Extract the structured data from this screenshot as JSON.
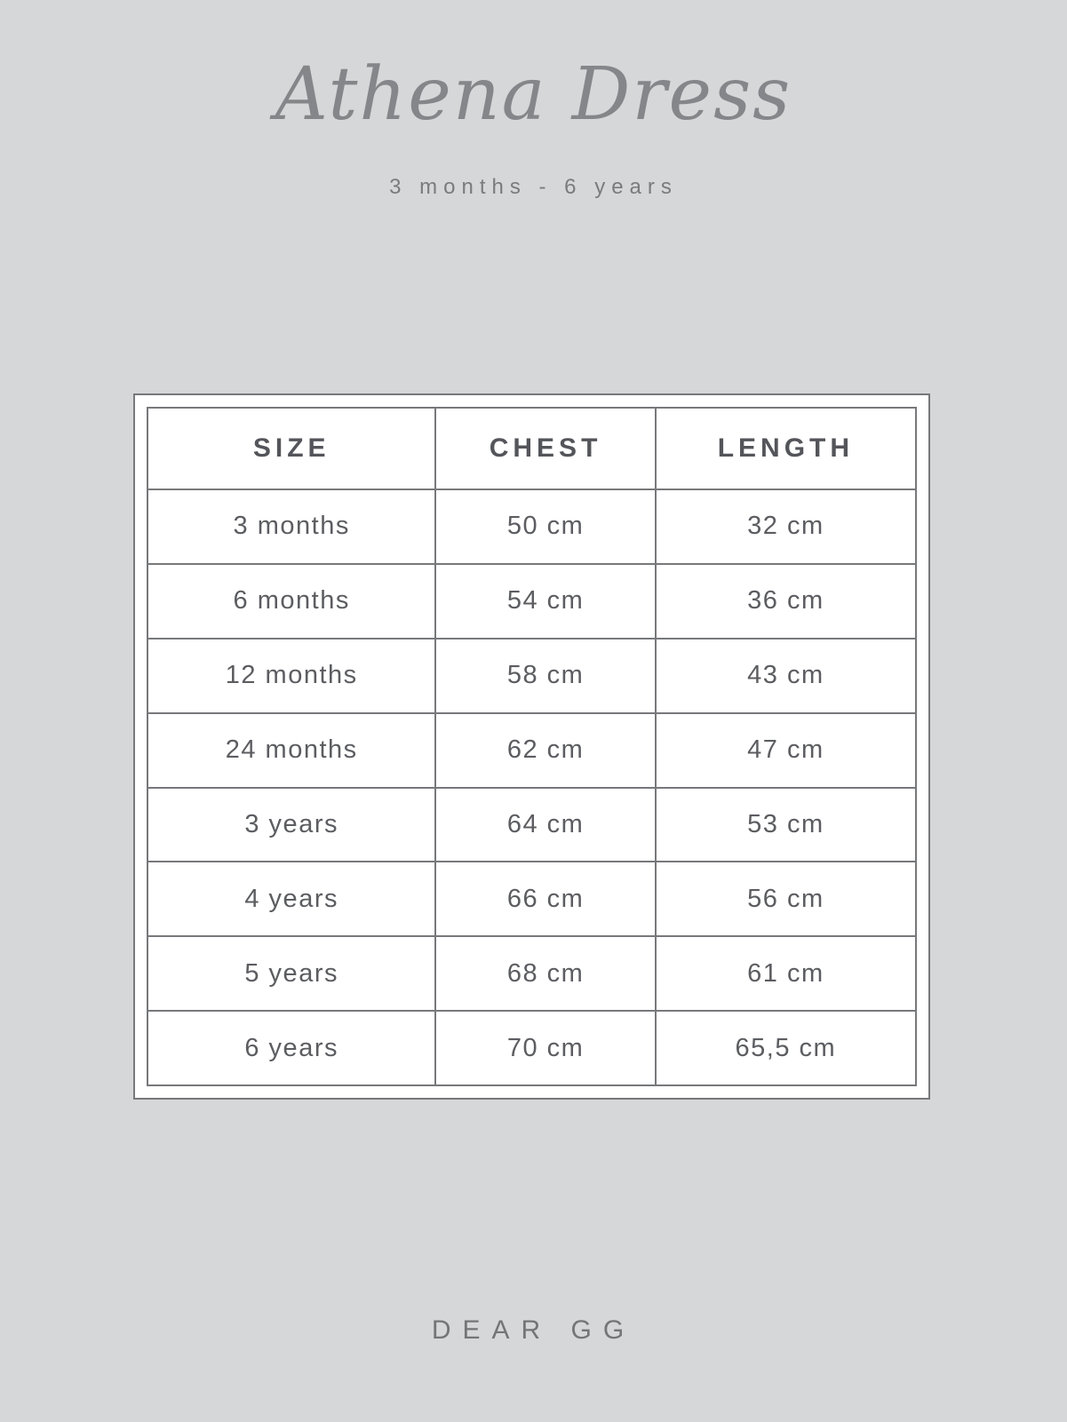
{
  "page": {
    "title": "Athena Dress",
    "subtitle": "3 months - 6 years",
    "brand": "DEAR GG"
  },
  "size_chart": {
    "columns": [
      "SIZE",
      "CHEST",
      "LENGTH"
    ],
    "rows": [
      [
        "3 months",
        "50 cm",
        "32 cm"
      ],
      [
        "6 months",
        "54 cm",
        "36 cm"
      ],
      [
        "12 months",
        "58 cm",
        "43 cm"
      ],
      [
        "24 months",
        "62 cm",
        "47 cm"
      ],
      [
        "3 years",
        "64 cm",
        "53 cm"
      ],
      [
        "4 years",
        "66 cm",
        "56 cm"
      ],
      [
        "5 years",
        "68 cm",
        "61 cm"
      ],
      [
        "6 years",
        "70 cm",
        "65,5 cm"
      ]
    ]
  },
  "colors": {
    "page_background": "#d5d7d8",
    "panel_background": "#ffffff",
    "border": "#77787b",
    "header_text": "#54555a",
    "cell_text": "#5c5d61",
    "title_text": "#84868a",
    "subtitle_text": "#797b7e",
    "brand_text": "#737578"
  }
}
